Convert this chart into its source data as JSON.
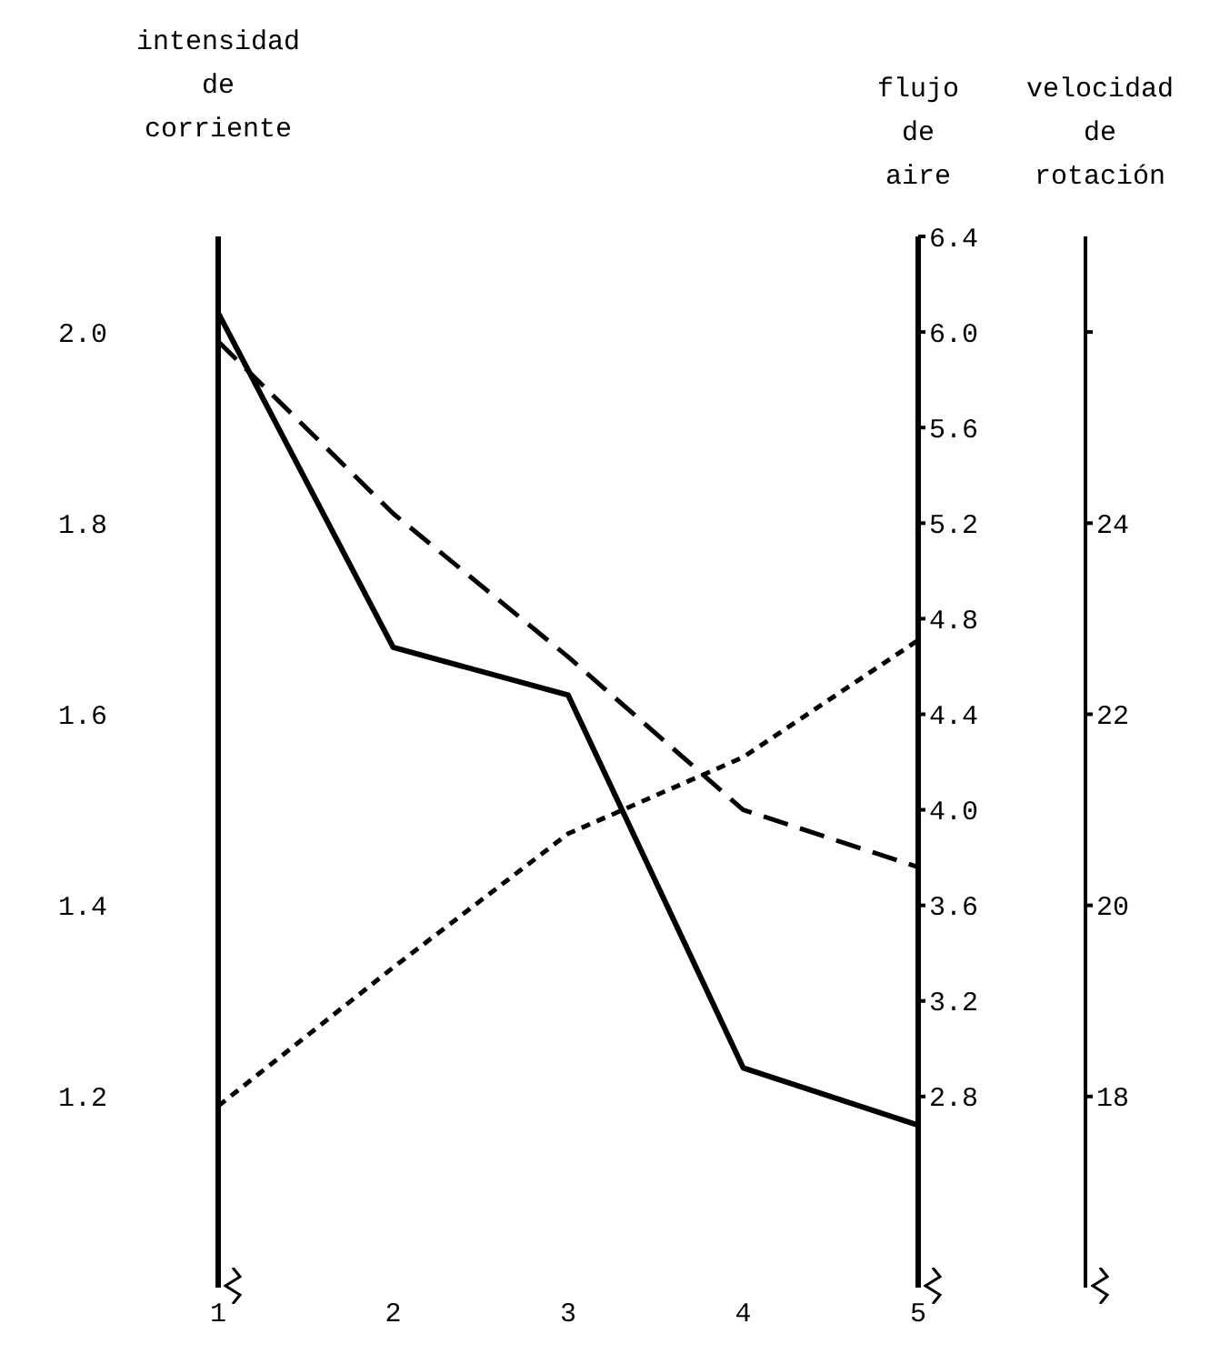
{
  "chart_data": {
    "type": "line",
    "ylabel": "intensidad de corriente",
    "y2label": "flujo de aire",
    "y3label": "velocidad de rotación",
    "x": [
      1,
      2,
      3,
      4,
      5
    ],
    "xlim": [
      1,
      5
    ],
    "xticks": [
      1,
      2,
      3,
      4,
      5
    ],
    "ylim": [
      1.0,
      2.1
    ],
    "yticks": [
      {
        "value": 1.2,
        "label": "1.2"
      },
      {
        "value": 1.4,
        "label": "1.4"
      },
      {
        "value": 1.6,
        "label": "1.6"
      },
      {
        "value": 1.8,
        "label": "1.8"
      },
      {
        "value": 2,
        "label": "2.0"
      }
    ],
    "y2lim": [
      2.0,
      6.4
    ],
    "y2ticks": [
      2.8,
      3.2,
      3.6,
      {
        "value": 4,
        "label": "4.0"
      },
      4.4,
      4.8,
      5.2,
      5.6,
      {
        "value": 6,
        "label": "6.0"
      },
      6.4
    ],
    "y3lim": [
      16,
      27
    ],
    "y3ticks": [
      18,
      20,
      22,
      24,
      {
        "value": 26,
        "label": null
      }
    ],
    "marker": "none",
    "series": [
      {
        "color": "#000000",
        "line_style": "solid",
        "values": [
          2.02,
          1.67,
          1.62,
          1.23,
          1.17
        ]
      },
      {
        "color": "#000000",
        "line_style": "dashed",
        "axis": "y3",
        "values": [
          25.9,
          24.1,
          22.6,
          21.0,
          20.4
        ]
      },
      {
        "color": "#000000",
        "line_style": "dotted",
        "axis": "y2",
        "values": [
          2.76,
          3.34,
          3.9,
          4.22,
          4.71
        ]
      }
    ]
  }
}
